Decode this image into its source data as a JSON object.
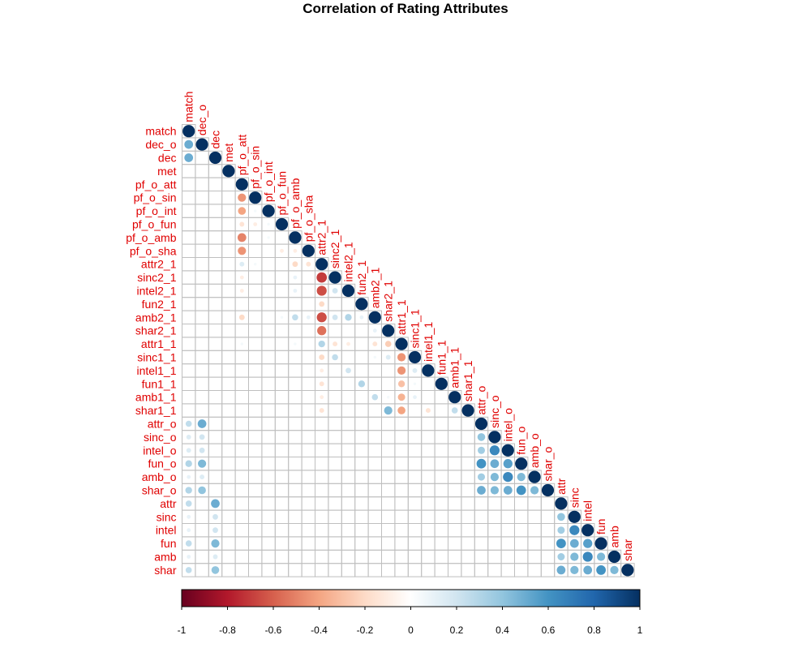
{
  "chart_data": {
    "type": "heatmap",
    "title": "Correlation of Rating Attributes",
    "variables": [
      "match",
      "dec_o",
      "dec",
      "met",
      "pf_o_att",
      "pf_o_sin",
      "pf_o_int",
      "pf_o_fun",
      "pf_o_amb",
      "pf_o_sha",
      "attr2_1",
      "sinc2_1",
      "intel2_1",
      "fun2_1",
      "amb2_1",
      "shar2_1",
      "attr1_1",
      "sinc1_1",
      "intel1_1",
      "fun1_1",
      "amb1_1",
      "shar1_1",
      "attr_o",
      "sinc_o",
      "intel_o",
      "fun_o",
      "amb_o",
      "shar_o",
      "attr",
      "sinc",
      "intel",
      "fun",
      "amb",
      "shar"
    ],
    "matrix_shape": "lower-triangular",
    "value_range": [
      -1,
      1
    ],
    "correlations": [
      [
        "dec_o",
        "match",
        0.5
      ],
      [
        "dec",
        "match",
        0.5
      ],
      [
        "pf_o_sin",
        "pf_o_att",
        -0.45
      ],
      [
        "pf_o_int",
        "pf_o_att",
        -0.4
      ],
      [
        "pf_o_fun",
        "pf_o_att",
        -0.15
      ],
      [
        "pf_o_amb",
        "pf_o_att",
        -0.5
      ],
      [
        "pf_o_sha",
        "pf_o_att",
        -0.45
      ],
      [
        "pf_o_int",
        "pf_o_sin",
        0.05
      ],
      [
        "pf_o_fun",
        "pf_o_sin",
        -0.1
      ],
      [
        "pf_o_fun",
        "pf_o_int",
        0.05
      ],
      [
        "pf_o_amb",
        "pf_o_int",
        0.05
      ],
      [
        "pf_o_sha",
        "pf_o_fun",
        -0.1
      ],
      [
        "pf_o_sha",
        "pf_o_amb",
        -0.1
      ],
      [
        "attr2_1",
        "pf_o_att",
        0.15
      ],
      [
        "attr2_1",
        "pf_o_sin",
        0.05
      ],
      [
        "attr2_1",
        "pf_o_amb",
        -0.2
      ],
      [
        "attr2_1",
        "pf_o_sha",
        -0.15
      ],
      [
        "sinc2_1",
        "pf_o_att",
        -0.1
      ],
      [
        "sinc2_1",
        "pf_o_amb",
        0.1
      ],
      [
        "intel2_1",
        "pf_o_att",
        -0.1
      ],
      [
        "intel2_1",
        "pf_o_amb",
        0.1
      ],
      [
        "amb2_1",
        "pf_o_att",
        -0.2
      ],
      [
        "amb2_1",
        "pf_o_fun",
        0.05
      ],
      [
        "amb2_1",
        "pf_o_amb",
        0.25
      ],
      [
        "amb2_1",
        "pf_o_sha",
        0.1
      ],
      [
        "attr1_1",
        "pf_o_att",
        0.05
      ],
      [
        "attr1_1",
        "pf_o_amb",
        0.05
      ],
      [
        "sinc2_1",
        "attr2_1",
        -0.7
      ],
      [
        "intel2_1",
        "attr2_1",
        -0.65
      ],
      [
        "fun2_1",
        "attr2_1",
        -0.2
      ],
      [
        "amb2_1",
        "attr2_1",
        -0.65
      ],
      [
        "shar2_1",
        "attr2_1",
        -0.55
      ],
      [
        "intel2_1",
        "sinc2_1",
        0.2
      ],
      [
        "amb2_1",
        "sinc2_1",
        0.2
      ],
      [
        "amb2_1",
        "intel2_1",
        0.3
      ],
      [
        "amb2_1",
        "fun2_1",
        0.1
      ],
      [
        "shar2_1",
        "amb2_1",
        0.1
      ],
      [
        "attr1_1",
        "attr2_1",
        0.3
      ],
      [
        "attr1_1",
        "sinc2_1",
        -0.15
      ],
      [
        "attr1_1",
        "intel2_1",
        -0.1
      ],
      [
        "attr1_1",
        "amb2_1",
        -0.15
      ],
      [
        "attr1_1",
        "shar2_1",
        -0.25
      ],
      [
        "sinc1_1",
        "attr2_1",
        -0.2
      ],
      [
        "sinc1_1",
        "sinc2_1",
        0.25
      ],
      [
        "sinc1_1",
        "amb2_1",
        0.05
      ],
      [
        "sinc1_1",
        "shar2_1",
        0.15
      ],
      [
        "intel1_1",
        "attr2_1",
        -0.1
      ],
      [
        "intel1_1",
        "intel2_1",
        0.2
      ],
      [
        "fun1_1",
        "attr2_1",
        -0.15
      ],
      [
        "fun1_1",
        "fun2_1",
        0.3
      ],
      [
        "amb1_1",
        "attr2_1",
        -0.1
      ],
      [
        "amb1_1",
        "amb2_1",
        0.25
      ],
      [
        "amb1_1",
        "shar2_1",
        0.05
      ],
      [
        "shar1_1",
        "attr2_1",
        -0.15
      ],
      [
        "shar1_1",
        "shar2_1",
        0.45
      ],
      [
        "sinc1_1",
        "attr1_1",
        -0.45
      ],
      [
        "intel1_1",
        "attr1_1",
        -0.45
      ],
      [
        "fun1_1",
        "attr1_1",
        -0.3
      ],
      [
        "amb1_1",
        "attr1_1",
        -0.35
      ],
      [
        "shar1_1",
        "attr1_1",
        -0.4
      ],
      [
        "intel1_1",
        "sinc1_1",
        0.15
      ],
      [
        "fun1_1",
        "sinc1_1",
        0.05
      ],
      [
        "amb1_1",
        "sinc1_1",
        0.1
      ],
      [
        "shar1_1",
        "intel1_1",
        -0.15
      ],
      [
        "shar1_1",
        "amb1_1",
        0.25
      ],
      [
        "attr_o",
        "match",
        0.25
      ],
      [
        "attr_o",
        "dec_o",
        0.5
      ],
      [
        "sinc_o",
        "match",
        0.15
      ],
      [
        "sinc_o",
        "dec_o",
        0.2
      ],
      [
        "intel_o",
        "match",
        0.15
      ],
      [
        "intel_o",
        "dec_o",
        0.2
      ],
      [
        "fun_o",
        "match",
        0.3
      ],
      [
        "fun_o",
        "dec_o",
        0.45
      ],
      [
        "amb_o",
        "match",
        0.1
      ],
      [
        "amb_o",
        "dec_o",
        0.15
      ],
      [
        "shar_o",
        "match",
        0.3
      ],
      [
        "shar_o",
        "dec_o",
        0.4
      ],
      [
        "sinc_o",
        "attr_o",
        0.4
      ],
      [
        "intel_o",
        "attr_o",
        0.35
      ],
      [
        "fun_o",
        "attr_o",
        0.6
      ],
      [
        "amb_o",
        "attr_o",
        0.35
      ],
      [
        "shar_o",
        "attr_o",
        0.5
      ],
      [
        "intel_o",
        "sinc_o",
        0.65
      ],
      [
        "fun_o",
        "sinc_o",
        0.5
      ],
      [
        "amb_o",
        "sinc_o",
        0.45
      ],
      [
        "shar_o",
        "sinc_o",
        0.45
      ],
      [
        "fun_o",
        "intel_o",
        0.55
      ],
      [
        "amb_o",
        "intel_o",
        0.65
      ],
      [
        "shar_o",
        "intel_o",
        0.5
      ],
      [
        "amb_o",
        "fun_o",
        0.45
      ],
      [
        "shar_o",
        "fun_o",
        0.6
      ],
      [
        "shar_o",
        "amb_o",
        0.45
      ],
      [
        "attr",
        "match",
        0.25
      ],
      [
        "attr",
        "dec",
        0.5
      ],
      [
        "sinc",
        "match",
        0.1
      ],
      [
        "sinc",
        "dec",
        0.2
      ],
      [
        "intel",
        "match",
        0.1
      ],
      [
        "intel",
        "dec",
        0.2
      ],
      [
        "fun",
        "match",
        0.25
      ],
      [
        "fun",
        "dec",
        0.45
      ],
      [
        "amb",
        "match",
        0.1
      ],
      [
        "amb",
        "dec",
        0.15
      ],
      [
        "shar",
        "match",
        0.25
      ],
      [
        "shar",
        "dec",
        0.4
      ],
      [
        "sinc",
        "attr",
        0.4
      ],
      [
        "intel",
        "attr",
        0.35
      ],
      [
        "fun",
        "attr",
        0.6
      ],
      [
        "amb",
        "attr",
        0.35
      ],
      [
        "shar",
        "attr",
        0.5
      ],
      [
        "intel",
        "sinc",
        0.65
      ],
      [
        "fun",
        "sinc",
        0.5
      ],
      [
        "amb",
        "sinc",
        0.45
      ],
      [
        "shar",
        "sinc",
        0.45
      ],
      [
        "fun",
        "intel",
        0.55
      ],
      [
        "amb",
        "intel",
        0.65
      ],
      [
        "shar",
        "intel",
        0.5
      ],
      [
        "amb",
        "fun",
        0.45
      ],
      [
        "shar",
        "fun",
        0.6
      ],
      [
        "shar",
        "amb",
        0.45
      ]
    ],
    "colorbar_ticks": [
      "-1",
      "-0.8",
      "-0.6",
      "-0.4",
      "-0.2",
      "0",
      "0.2",
      "0.4",
      "0.6",
      "0.8",
      "1"
    ],
    "colors": {
      "neg_strong": "#67001f",
      "neg_mid": "#d6604d",
      "zero": "#ffffff",
      "pos_mid": "#4393c3",
      "pos_strong": "#053061",
      "label": "#e00000",
      "grid": "#bfbfbf"
    },
    "legend": "bottom"
  }
}
